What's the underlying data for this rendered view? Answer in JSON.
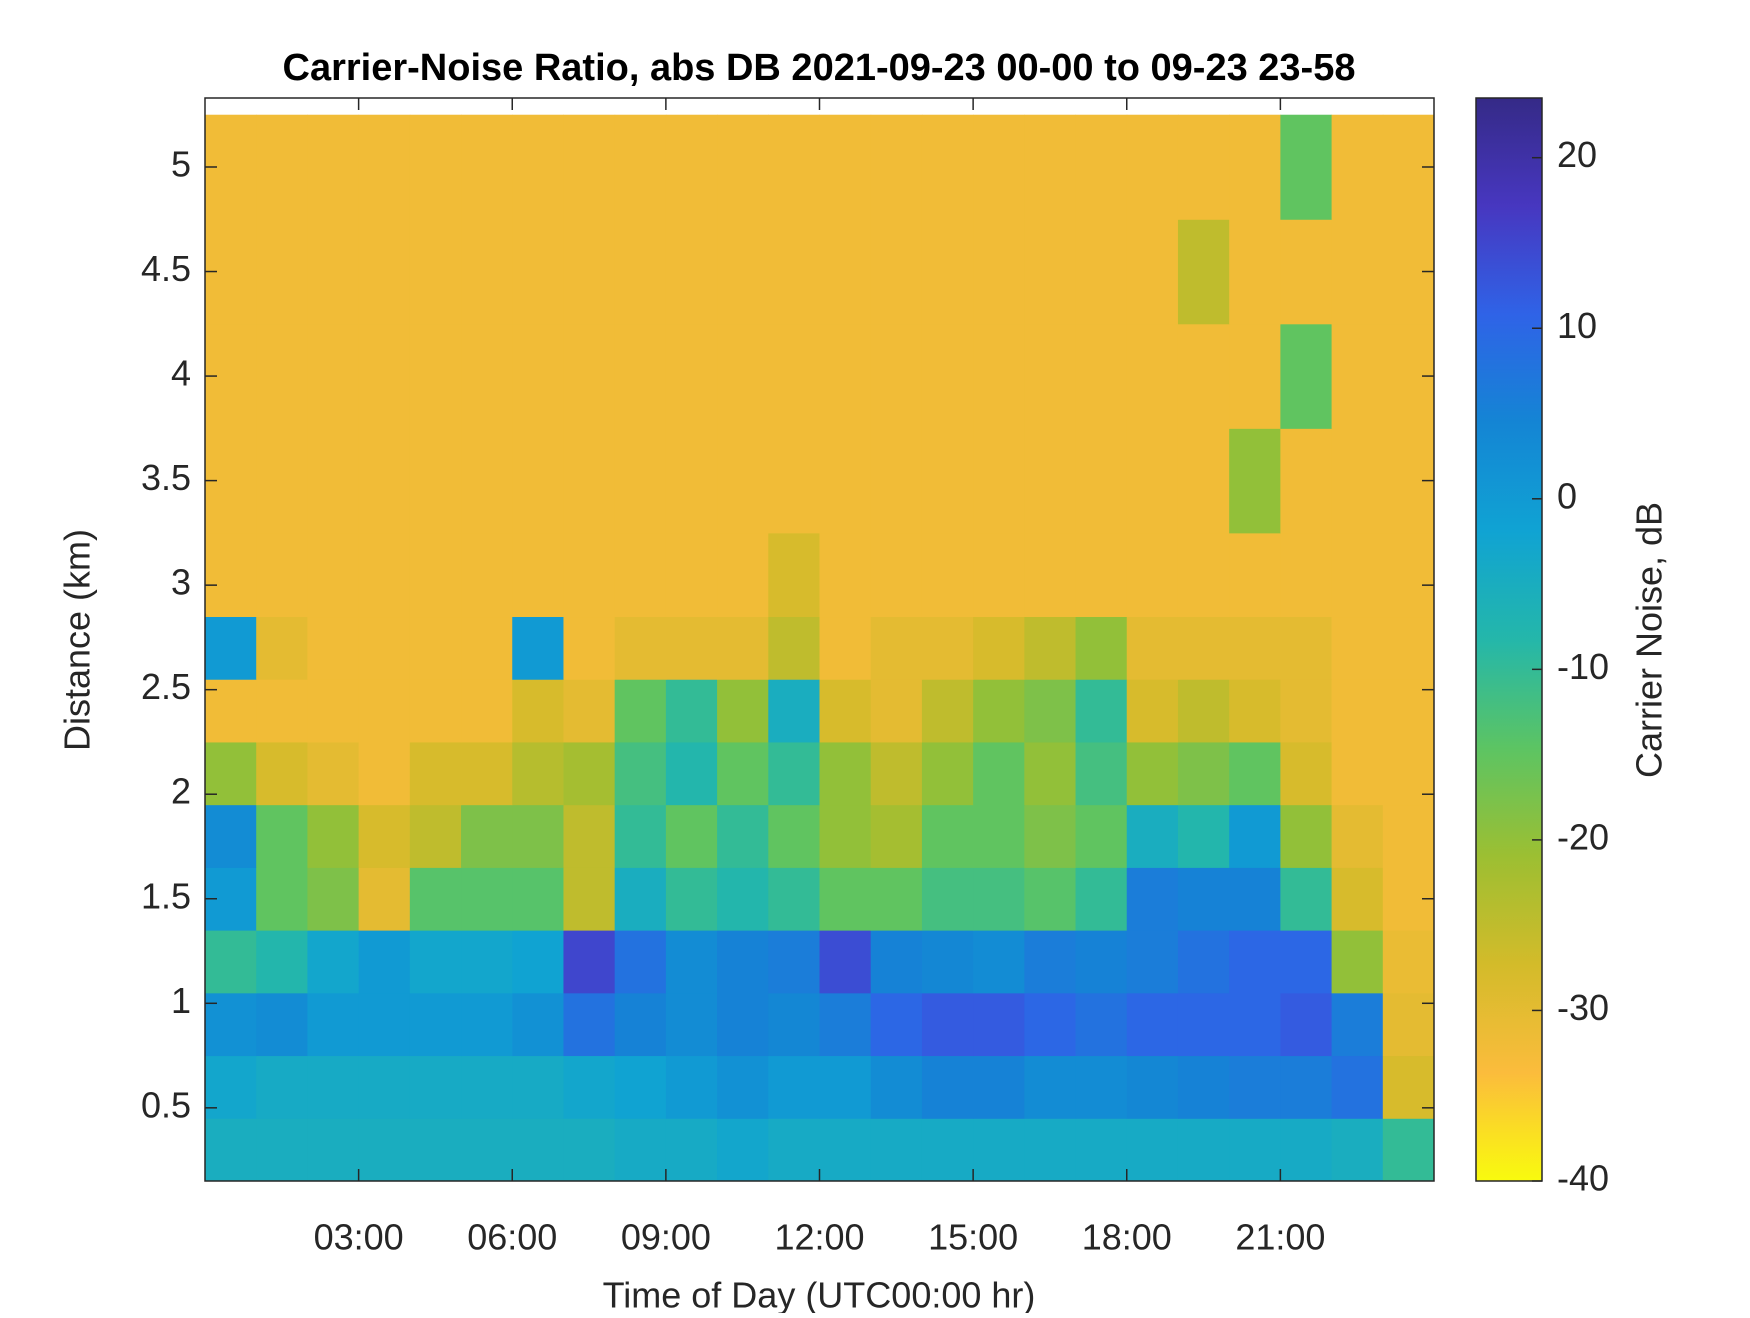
{
  "chart_data": {
    "type": "heatmap",
    "title": "Carrier-Noise Ratio, abs DB 2021-09-23 00-00 to 09-23 23-58",
    "x_label": "Time of Day (UTC00:00 hr)",
    "y_label": "Distance (km)",
    "colorbar_label": "Carrier Noise, dB",
    "colormap": "parula",
    "x": [
      0.5,
      1.5,
      2.5,
      3.5,
      4.5,
      5.5,
      6.5,
      7.5,
      8.5,
      9.5,
      10.5,
      11.5,
      12.5,
      13.5,
      14.5,
      15.5,
      16.5,
      17.5,
      18.5,
      19.5,
      20.5,
      21.5,
      22.5,
      23.5
    ],
    "y": [
      0.3,
      0.6,
      0.9,
      1.2,
      1.5,
      1.8,
      2.1,
      2.4,
      2.7,
      3.0,
      3.5,
      4.0,
      4.5,
      5.0
    ],
    "z": [
      [
        -5,
        -5,
        -5,
        -5,
        -5,
        -5,
        -5,
        -5,
        -4,
        -4,
        -3,
        -4,
        -4,
        -4,
        -4,
        -4,
        -4,
        -4,
        -4,
        -4,
        -4,
        -4,
        -5,
        -10
      ],
      [
        -3,
        -4,
        -4,
        -4,
        -4,
        -4,
        -4,
        -3,
        -2,
        0,
        2,
        0,
        0,
        3,
        5,
        5,
        3,
        3,
        4,
        5,
        6,
        6,
        8,
        -28
      ],
      [
        2,
        3,
        0,
        0,
        0,
        0,
        2,
        8,
        5,
        3,
        5,
        4,
        6,
        10,
        12,
        12,
        10,
        8,
        10,
        10,
        10,
        12,
        6,
        -30
      ],
      [
        -10,
        -8,
        -3,
        0,
        -3,
        -3,
        -2,
        15,
        8,
        3,
        5,
        6,
        14,
        5,
        4,
        3,
        6,
        5,
        6,
        8,
        10,
        10,
        -20,
        -31
      ],
      [
        0,
        -15,
        -18,
        -30,
        -14,
        -14,
        -14,
        -25,
        -5,
        -10,
        -8,
        -10,
        -15,
        -15,
        -12,
        -12,
        -14,
        -10,
        6,
        5,
        5,
        -10,
        -28,
        -32
      ],
      [
        3,
        -15,
        -20,
        -28,
        -25,
        -18,
        -18,
        -25,
        -10,
        -15,
        -10,
        -15,
        -20,
        -22,
        -15,
        -15,
        -18,
        -15,
        -5,
        -8,
        0,
        -20,
        -30,
        -32
      ],
      [
        -20,
        -28,
        -30,
        -32,
        -28,
        -28,
        -24,
        -22,
        -12,
        -8,
        -15,
        -10,
        -20,
        -25,
        -20,
        -15,
        -20,
        -12,
        -20,
        -18,
        -15,
        -28,
        -32,
        -32
      ],
      [
        -32,
        -32,
        -32,
        -32,
        -32,
        -32,
        -28,
        -30,
        -15,
        -10,
        -20,
        -5,
        -28,
        -30,
        -25,
        -20,
        -18,
        -10,
        -28,
        -25,
        -28,
        -30,
        -32,
        -32
      ],
      [
        0,
        -30,
        -32,
        -32,
        -32,
        -32,
        0,
        -32,
        -30,
        -30,
        -30,
        -25,
        -32,
        -30,
        -30,
        -28,
        -25,
        -20,
        -30,
        -30,
        -30,
        -30,
        -32,
        -32
      ],
      [
        -32,
        -32,
        -32,
        -32,
        -32,
        -32,
        -32,
        -32,
        -32,
        -32,
        -32,
        -28,
        -32,
        -32,
        -32,
        -32,
        -32,
        -32,
        -32,
        -32,
        -32,
        -32,
        -32,
        -32
      ],
      [
        -32,
        -32,
        -32,
        -32,
        -32,
        -32,
        -32,
        -32,
        -32,
        -32,
        -32,
        -32,
        -32,
        -32,
        -32,
        -32,
        -32,
        -32,
        -32,
        -32,
        -20,
        -32,
        -32,
        -32
      ],
      [
        -32,
        -32,
        -32,
        -32,
        -32,
        -32,
        -32,
        -32,
        -32,
        -32,
        -32,
        -32,
        -32,
        -32,
        -32,
        -32,
        -32,
        -32,
        -32,
        -32,
        -32,
        -15,
        -32,
        -32
      ],
      [
        -32,
        -32,
        -32,
        -32,
        -32,
        -32,
        -32,
        -32,
        -32,
        -32,
        -32,
        -32,
        -32,
        -32,
        -32,
        -32,
        -32,
        -32,
        -32,
        -25,
        -32,
        -32,
        -32,
        -32
      ],
      [
        -32,
        -32,
        -32,
        -32,
        -32,
        -32,
        -32,
        -32,
        -32,
        -32,
        -32,
        -32,
        -32,
        -32,
        -32,
        -32,
        -32,
        -32,
        -32,
        -32,
        -32,
        -15,
        -32,
        -32
      ]
    ],
    "xlim": [
      0,
      24
    ],
    "xticks": [
      {
        "value": 3,
        "label": "03:00"
      },
      {
        "value": 6,
        "label": "06:00"
      },
      {
        "value": 9,
        "label": "09:00"
      },
      {
        "value": 12,
        "label": "12:00"
      },
      {
        "value": 15,
        "label": "15:00"
      },
      {
        "value": 18,
        "label": "18:00"
      },
      {
        "value": 21,
        "label": "21:00"
      }
    ],
    "ylim": [
      0.15,
      5.33
    ],
    "yticks": [
      0.5,
      1,
      1.5,
      2,
      2.5,
      3,
      3.5,
      4,
      4.5,
      5
    ],
    "clim": [
      -40,
      23.5
    ],
    "cticks": [
      -40,
      -30,
      -20,
      -10,
      0,
      10,
      20
    ]
  }
}
